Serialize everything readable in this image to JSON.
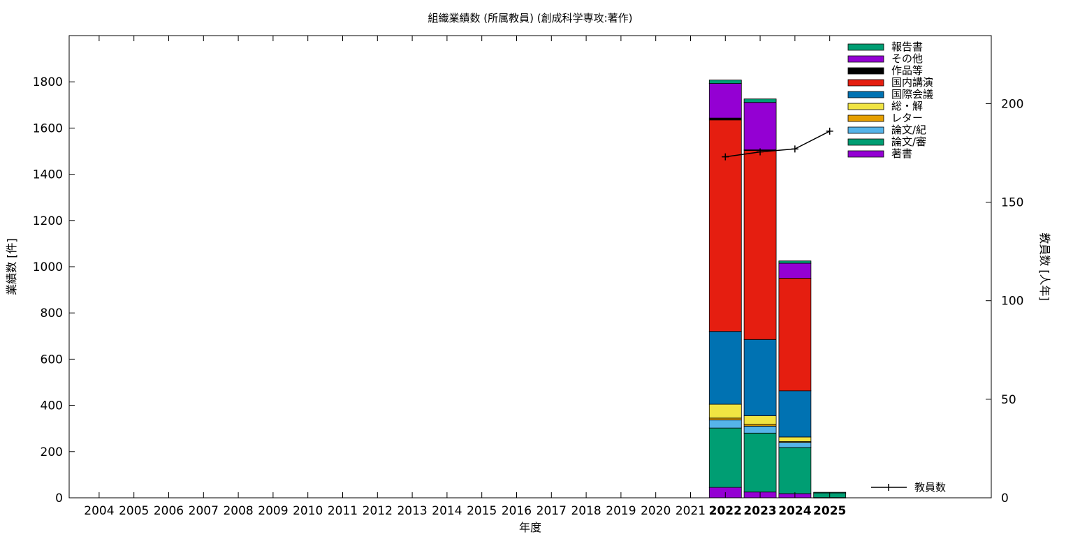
{
  "chart_data": {
    "type": "bar",
    "stacked": true,
    "title": "組織業績数 (所属教員) (創成科学専攻:著作)",
    "xlabel": "年度",
    "ylabel": "業績数 [件]",
    "y2label": "教員数 [人年]",
    "ylim": [
      0,
      2000
    ],
    "yticks": [
      0,
      200,
      400,
      600,
      800,
      1000,
      1200,
      1400,
      1600,
      1800
    ],
    "y2lim": [
      0,
      234.5
    ],
    "y2ticks": [
      0,
      50,
      100,
      150,
      200
    ],
    "grid": false,
    "legend_position": "top-right",
    "categories": [
      "2004",
      "2005",
      "2006",
      "2007",
      "2008",
      "2009",
      "2010",
      "2011",
      "2012",
      "2013",
      "2014",
      "2015",
      "2016",
      "2017",
      "2018",
      "2019",
      "2020",
      "2021",
      "2022",
      "2023",
      "2024",
      "2025"
    ],
    "highlighted_categories": [
      "2022",
      "2023",
      "2024",
      "2025"
    ],
    "series": [
      {
        "name": "著書",
        "color": "#9400d3",
        "values": [
          0,
          0,
          0,
          0,
          0,
          0,
          0,
          0,
          0,
          0,
          0,
          0,
          0,
          0,
          0,
          0,
          0,
          0,
          45,
          25,
          18,
          1
        ]
      },
      {
        "name": "論文/審",
        "color": "#009e73",
        "values": [
          0,
          0,
          0,
          0,
          0,
          0,
          0,
          0,
          0,
          0,
          0,
          0,
          0,
          0,
          0,
          0,
          0,
          0,
          257,
          255,
          200,
          20
        ]
      },
      {
        "name": "論文/紀",
        "color": "#56b4e9",
        "values": [
          0,
          0,
          0,
          0,
          0,
          0,
          0,
          0,
          0,
          0,
          0,
          0,
          0,
          0,
          0,
          0,
          0,
          0,
          35,
          30,
          22,
          0
        ]
      },
      {
        "name": "レター",
        "color": "#e69f00",
        "values": [
          0,
          0,
          0,
          0,
          0,
          0,
          0,
          0,
          0,
          0,
          0,
          0,
          0,
          0,
          0,
          0,
          0,
          0,
          8,
          8,
          3,
          0
        ]
      },
      {
        "name": "総・解",
        "color": "#f0e442",
        "values": [
          0,
          0,
          0,
          0,
          0,
          0,
          0,
          0,
          0,
          0,
          0,
          0,
          0,
          0,
          0,
          0,
          0,
          0,
          60,
          37,
          20,
          0
        ]
      },
      {
        "name": "国際会議",
        "color": "#0072b2",
        "values": [
          0,
          0,
          0,
          0,
          0,
          0,
          0,
          0,
          0,
          0,
          0,
          0,
          0,
          0,
          0,
          0,
          0,
          0,
          315,
          330,
          200,
          0
        ]
      },
      {
        "name": "国内講演",
        "color": "#e51e10",
        "values": [
          0,
          0,
          0,
          0,
          0,
          0,
          0,
          0,
          0,
          0,
          0,
          0,
          0,
          0,
          0,
          0,
          0,
          0,
          915,
          818,
          487,
          0
        ]
      },
      {
        "name": "作品等",
        "color": "#000000",
        "values": [
          0,
          0,
          0,
          0,
          0,
          0,
          0,
          0,
          0,
          0,
          0,
          0,
          0,
          0,
          0,
          0,
          0,
          0,
          8,
          3,
          0,
          0
        ]
      },
      {
        "name": "その他",
        "color": "#9400d3",
        "values": [
          0,
          0,
          0,
          0,
          0,
          0,
          0,
          0,
          0,
          0,
          0,
          0,
          0,
          0,
          0,
          0,
          0,
          0,
          150,
          205,
          65,
          0
        ]
      },
      {
        "name": "報告書",
        "color": "#009e73",
        "values": [
          0,
          0,
          0,
          0,
          0,
          0,
          0,
          0,
          0,
          0,
          0,
          0,
          0,
          0,
          0,
          0,
          0,
          0,
          15,
          15,
          10,
          3
        ]
      }
    ],
    "legend_order": [
      "報告書",
      "その他",
      "作品等",
      "国内講演",
      "国際会議",
      "総・解",
      "レター",
      "論文/紀",
      "論文/審",
      "著書"
    ],
    "line_series": {
      "name": "教員数",
      "axis": "y2",
      "color": "#000000",
      "x": [
        "2022",
        "2023",
        "2024",
        "2025"
      ],
      "values": [
        173,
        175.5,
        177,
        186
      ]
    }
  }
}
